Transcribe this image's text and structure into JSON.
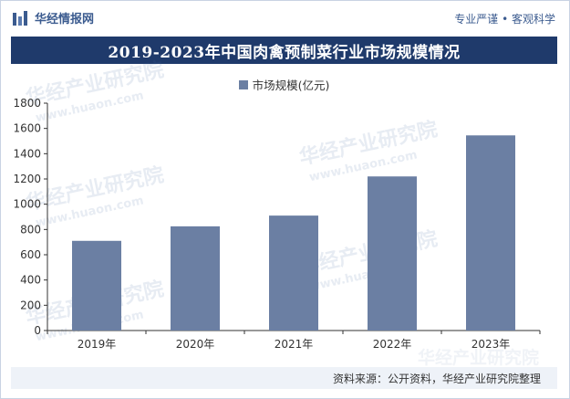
{
  "header": {
    "brand": "华经情报网",
    "slogan": "专业严谨 • 客观科学"
  },
  "title": "2019-2023年中国肉禽预制菜行业市场规模情况",
  "legend": {
    "label": "市场规模(亿元)"
  },
  "watermark": {
    "cn": "华经产业研究院",
    "url": "www.huaon.com"
  },
  "footer": {
    "source": "资料来源：公开资料，华经产业研究院整理"
  },
  "colors": {
    "bar": "#6b7fa3",
    "title_bg": "#1f3a6b",
    "brand": "#3b5b8f"
  },
  "chart_data": {
    "type": "bar",
    "title": "2019-2023年中国肉禽预制菜行业市场规模情况",
    "categories": [
      "2019年",
      "2020年",
      "2021年",
      "2022年",
      "2023年"
    ],
    "series": [
      {
        "name": "市场规模(亿元)",
        "values": [
          710,
          825,
          910,
          1220,
          1545
        ]
      }
    ],
    "ylim": [
      0,
      1800
    ],
    "yticks": [
      0,
      200,
      400,
      600,
      800,
      1000,
      1200,
      1400,
      1600,
      1800
    ],
    "ytick_labels": [
      "0",
      "200",
      "400",
      "600",
      "800",
      "1000",
      "1200",
      "1400",
      "1600",
      "1800"
    ],
    "xlabel": "",
    "ylabel": "",
    "grid": false,
    "legend_position": "top-center"
  }
}
